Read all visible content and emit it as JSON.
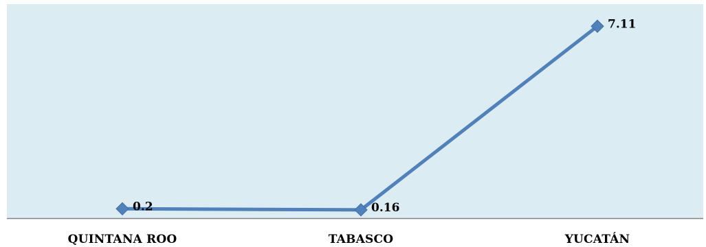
{
  "chart_data": {
    "type": "line",
    "categories": [
      "QUINTANA ROO",
      "TABASCO",
      "YUCATÁN"
    ],
    "series": [
      {
        "values": [
          0.2,
          0.16,
          7.11
        ]
      }
    ],
    "data_labels": [
      "0.2",
      "0.16",
      "7.11"
    ],
    "ylim": [
      0,
      8
    ],
    "grid": false,
    "legend": "none",
    "colors": {
      "plot_background": "#dbecf2",
      "line": "#4f81bd",
      "marker": "#4f81bd",
      "axis": "#808080"
    }
  }
}
